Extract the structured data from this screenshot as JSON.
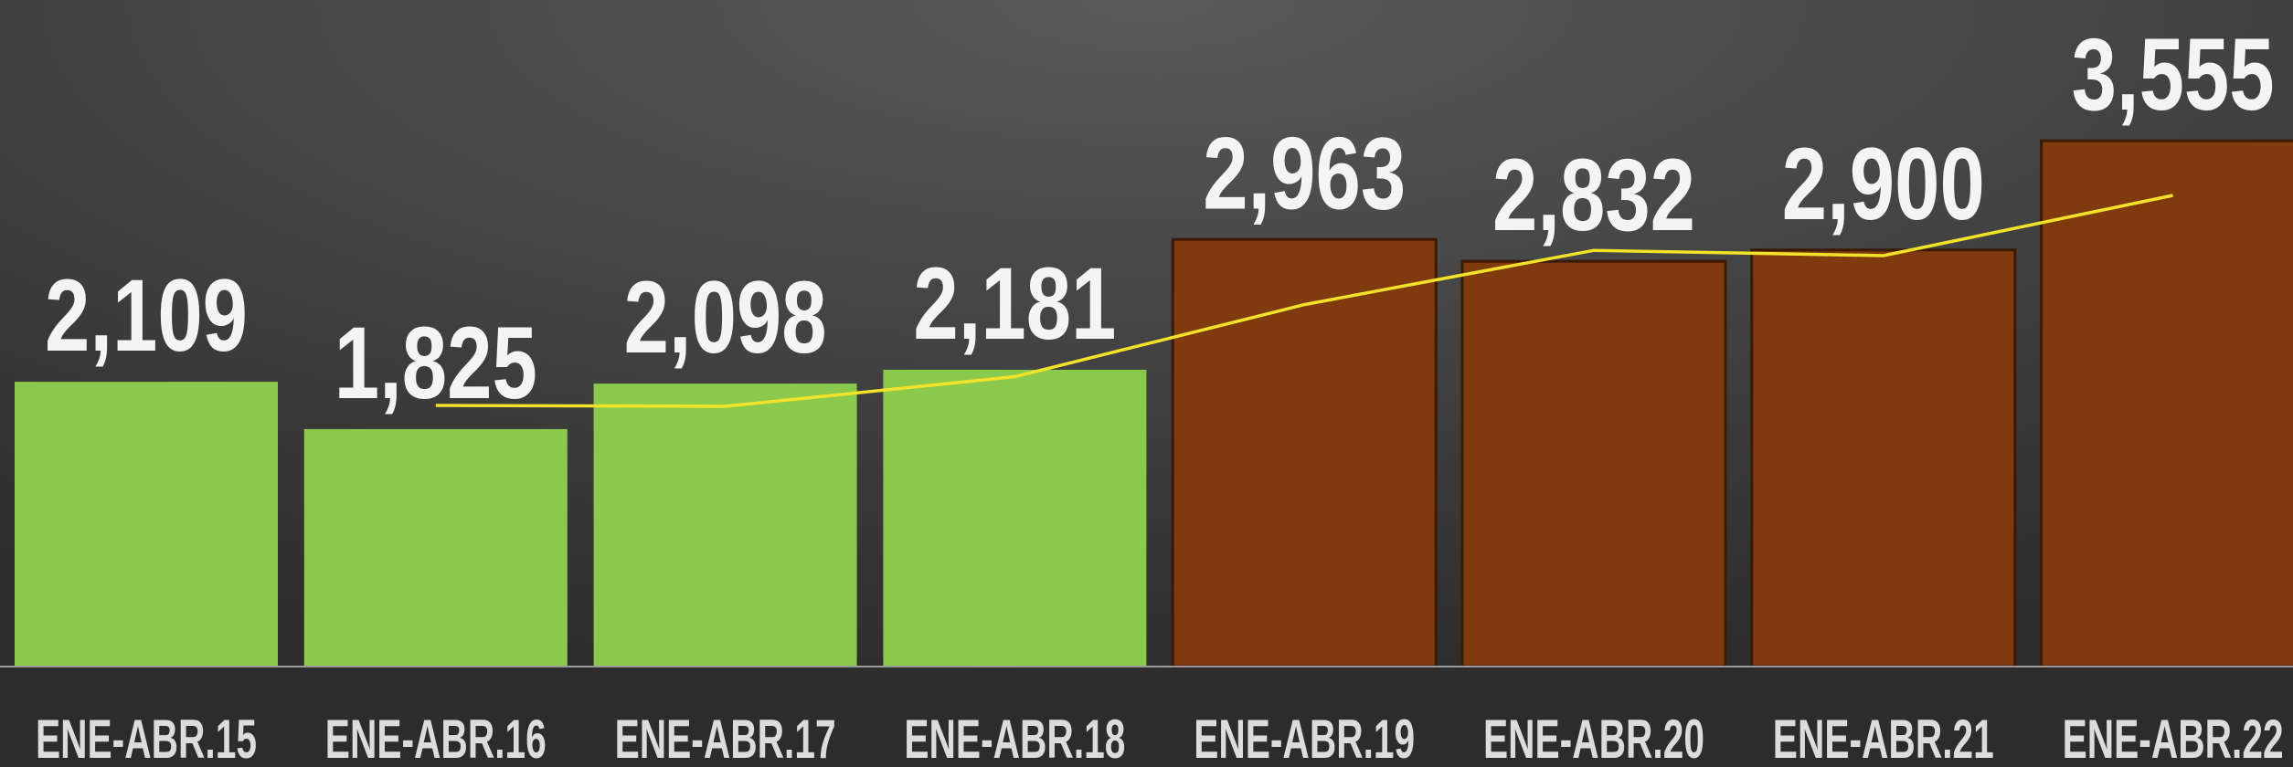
{
  "chart_data": {
    "type": "bar",
    "categories": [
      "ENE-ABR.15",
      "ENE-ABR.16",
      "ENE-ABR.17",
      "ENE-ABR.18",
      "ENE-ABR.19",
      "ENE-ABR.20",
      "ENE-ABR.21",
      "ENE-ABR.22"
    ],
    "values": [
      2109,
      1825,
      2098,
      2181,
      2963,
      2832,
      2900,
      3555
    ],
    "value_labels": [
      "2,109",
      "1,825",
      "2,098",
      "2,181",
      "2,963",
      "2,832",
      "2,900",
      "3,555"
    ],
    "colors": [
      "#8bc94c",
      "#8bc94c",
      "#8bc94c",
      "#8bc94c",
      "#7f3a0d",
      "#7f3a0d",
      "#7f3a0d",
      "#7f3a0d"
    ],
    "ylim": [
      400,
      4400
    ],
    "trend": {
      "type": "line",
      "color": "#f2e22a",
      "values": [
        null,
        1967,
        1961.5,
        2139.5,
        2572,
        2897.5,
        2866,
        3227.5
      ]
    }
  }
}
